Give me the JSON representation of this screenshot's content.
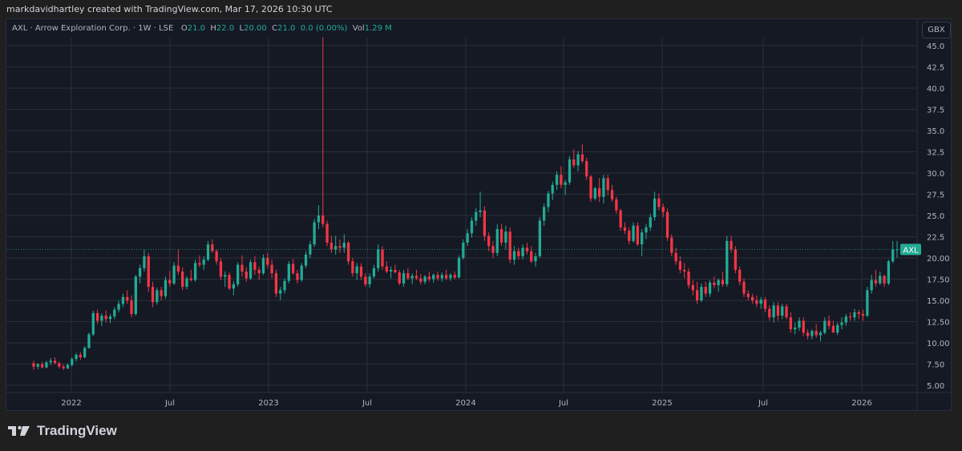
{
  "header": {
    "attribution": "markdavidhartley created with TradingView.com, Mar 17, 2026 10:30 UTC"
  },
  "legend": {
    "symbol": "AXL",
    "name": "Arrow Exploration Corp.",
    "interval": "1W",
    "exchange": "LSE",
    "open_label": "O",
    "open": "21.0",
    "high_label": "H",
    "high": "22.0",
    "low_label": "L",
    "low": "20.00",
    "close_label": "C",
    "close": "21.0",
    "change": "0.0 (0.00%)",
    "vol_label": "Vol",
    "volume": "1.29 M"
  },
  "price_scale": {
    "currency": "GBX",
    "ticks": [
      "45.0",
      "42.5",
      "40.0",
      "37.5",
      "35.0",
      "32.5",
      "30.0",
      "27.5",
      "25.0",
      "22.5",
      "20.00",
      "17.50",
      "15.00",
      "12.50",
      "10.00",
      "7.50",
      "5.00"
    ],
    "last_price_tag": "AXL"
  },
  "time_scale": {
    "ticks": [
      "2022",
      "Jul",
      "2023",
      "Jul",
      "2024",
      "Jul",
      "2025",
      "Jul",
      "2026"
    ]
  },
  "branding": {
    "logo_text": "TradingView"
  },
  "colors": {
    "up": "#22ab94",
    "down": "#f23645",
    "background": "#151924",
    "grid": "#2a2e39",
    "text": "#b2b5be",
    "outer": "#1f1f1f"
  },
  "chart_data": {
    "type": "candlestick",
    "title": "AXL · Arrow Exploration Corp. · 1W · LSE",
    "xlabel": "",
    "ylabel": "Price (GBX)",
    "ylim": [
      5.0,
      45.0
    ],
    "x_tick_labels": [
      "2022",
      "Jul",
      "2023",
      "Jul",
      "2024",
      "Jul",
      "2025",
      "Jul",
      "2026"
    ],
    "y_tick_labels": [
      "5.00",
      "7.50",
      "10.00",
      "12.50",
      "15.00",
      "17.50",
      "20.00",
      "22.5",
      "25.0",
      "27.5",
      "30.0",
      "32.5",
      "35.0",
      "37.5",
      "40.0",
      "42.5",
      "45.0"
    ],
    "grid": true,
    "last_price": 21.0,
    "start": "2021-10 (approx)",
    "end": "2026-03",
    "interval": "weekly",
    "ohlc": [
      [
        7.6,
        7.9,
        6.8,
        7.2
      ],
      [
        7.2,
        7.6,
        6.9,
        7.5
      ],
      [
        7.5,
        7.8,
        7.0,
        7.1
      ],
      [
        7.1,
        7.9,
        7.0,
        7.7
      ],
      [
        7.7,
        8.2,
        7.4,
        7.9
      ],
      [
        7.9,
        8.3,
        7.5,
        7.6
      ],
      [
        7.6,
        7.8,
        7.0,
        7.2
      ],
      [
        7.2,
        7.5,
        6.8,
        7.0
      ],
      [
        7.0,
        7.6,
        6.9,
        7.4
      ],
      [
        7.4,
        8.3,
        7.2,
        8.1
      ],
      [
        8.1,
        8.8,
        7.8,
        8.6
      ],
      [
        8.6,
        8.9,
        8.0,
        8.3
      ],
      [
        8.3,
        9.6,
        8.2,
        9.4
      ],
      [
        9.4,
        11.2,
        9.3,
        11.0
      ],
      [
        11.0,
        13.8,
        10.8,
        13.5
      ],
      [
        13.5,
        13.9,
        12.2,
        12.6
      ],
      [
        12.6,
        13.5,
        12.0,
        13.2
      ],
      [
        13.2,
        13.8,
        12.4,
        12.8
      ],
      [
        12.8,
        13.4,
        12.3,
        13.1
      ],
      [
        13.1,
        14.2,
        12.8,
        13.9
      ],
      [
        13.9,
        15.0,
        13.6,
        14.6
      ],
      [
        14.6,
        15.8,
        14.2,
        15.4
      ],
      [
        15.4,
        16.2,
        14.6,
        15.0
      ],
      [
        15.0,
        15.6,
        13.0,
        13.4
      ],
      [
        13.4,
        18.0,
        13.2,
        17.8
      ],
      [
        17.8,
        19.2,
        17.0,
        18.8
      ],
      [
        18.8,
        21.0,
        18.4,
        20.2
      ],
      [
        20.2,
        20.6,
        16.0,
        16.6
      ],
      [
        16.6,
        17.2,
        14.2,
        14.8
      ],
      [
        14.8,
        16.5,
        14.5,
        16.2
      ],
      [
        16.2,
        16.6,
        15.0,
        15.5
      ],
      [
        15.5,
        17.8,
        15.2,
        17.4
      ],
      [
        17.4,
        18.5,
        16.6,
        17.0
      ],
      [
        17.0,
        19.5,
        16.8,
        19.1
      ],
      [
        19.1,
        21.0,
        18.0,
        18.4
      ],
      [
        18.4,
        18.9,
        16.2,
        16.6
      ],
      [
        16.6,
        17.9,
        16.3,
        17.6
      ],
      [
        17.6,
        18.6,
        17.2,
        17.4
      ],
      [
        17.4,
        19.8,
        17.2,
        19.4
      ],
      [
        19.4,
        20.3,
        18.9,
        19.2
      ],
      [
        19.2,
        20.2,
        18.6,
        19.8
      ],
      [
        19.8,
        22.0,
        19.6,
        21.6
      ],
      [
        21.6,
        22.2,
        20.6,
        20.8
      ],
      [
        20.8,
        21.0,
        19.2,
        19.6
      ],
      [
        19.6,
        20.0,
        17.4,
        17.8
      ],
      [
        17.8,
        18.4,
        16.6,
        18.0
      ],
      [
        18.0,
        18.3,
        16.2,
        16.4
      ],
      [
        16.4,
        17.3,
        15.6,
        16.9
      ],
      [
        16.9,
        19.5,
        16.6,
        19.2
      ],
      [
        19.2,
        20.3,
        17.8,
        18.4
      ],
      [
        18.4,
        18.9,
        17.2,
        17.6
      ],
      [
        17.6,
        19.8,
        17.4,
        19.5
      ],
      [
        19.5,
        20.2,
        18.0,
        18.6
      ],
      [
        18.6,
        19.0,
        17.4,
        18.2
      ],
      [
        18.2,
        20.4,
        18.0,
        20.0
      ],
      [
        20.0,
        20.6,
        18.8,
        19.2
      ],
      [
        19.2,
        19.8,
        17.6,
        18.2
      ],
      [
        18.2,
        18.6,
        15.4,
        15.8
      ],
      [
        15.8,
        16.6,
        15.0,
        16.2
      ],
      [
        16.2,
        17.6,
        15.8,
        17.3
      ],
      [
        17.3,
        19.6,
        17.0,
        19.3
      ],
      [
        19.3,
        19.9,
        18.0,
        18.2
      ],
      [
        18.2,
        18.6,
        17.0,
        17.4
      ],
      [
        17.4,
        19.4,
        17.2,
        19.1
      ],
      [
        19.1,
        20.8,
        18.8,
        20.4
      ],
      [
        20.4,
        22.0,
        20.0,
        21.6
      ],
      [
        21.6,
        24.6,
        21.3,
        24.2
      ],
      [
        24.2,
        26.2,
        23.4,
        25.0
      ],
      [
        25.0,
        46.0,
        23.6,
        24.0
      ],
      [
        24.0,
        24.4,
        21.4,
        21.8
      ],
      [
        21.8,
        22.6,
        20.6,
        21.0
      ],
      [
        21.0,
        22.6,
        20.4,
        21.4
      ],
      [
        21.4,
        22.2,
        20.6,
        21.2
      ],
      [
        21.2,
        22.8,
        20.6,
        21.8
      ],
      [
        21.8,
        22.0,
        19.2,
        19.6
      ],
      [
        19.6,
        20.0,
        17.8,
        18.2
      ],
      [
        18.2,
        19.4,
        17.4,
        19.0
      ],
      [
        19.0,
        19.4,
        17.4,
        17.8
      ],
      [
        17.8,
        18.2,
        16.6,
        16.9
      ],
      [
        16.9,
        18.2,
        16.5,
        17.8
      ],
      [
        17.8,
        19.2,
        17.6,
        18.8
      ],
      [
        18.8,
        21.6,
        18.4,
        21.0
      ],
      [
        21.0,
        21.4,
        18.6,
        19.0
      ],
      [
        19.0,
        19.6,
        18.2,
        18.4
      ],
      [
        18.4,
        19.0,
        17.6,
        18.6
      ],
      [
        18.6,
        19.2,
        18.2,
        18.3
      ],
      [
        18.3,
        18.6,
        16.8,
        17.0
      ],
      [
        17.0,
        18.6,
        16.6,
        18.2
      ],
      [
        18.2,
        18.8,
        17.4,
        17.6
      ],
      [
        17.6,
        18.2,
        16.9,
        17.9
      ],
      [
        17.9,
        18.6,
        17.4,
        17.6
      ],
      [
        17.6,
        18.1,
        16.9,
        17.2
      ],
      [
        17.2,
        18.0,
        16.9,
        17.8
      ],
      [
        17.8,
        18.4,
        17.2,
        17.5
      ],
      [
        17.5,
        18.2,
        17.1,
        18.0
      ],
      [
        18.0,
        18.4,
        17.3,
        17.6
      ],
      [
        17.6,
        18.3,
        17.2,
        18.0
      ],
      [
        18.0,
        18.6,
        17.4,
        17.6
      ],
      [
        17.6,
        18.2,
        17.3,
        18.0
      ],
      [
        18.0,
        18.4,
        17.5,
        17.7
      ],
      [
        17.7,
        20.3,
        17.6,
        20.0
      ],
      [
        20.0,
        22.2,
        19.8,
        21.8
      ],
      [
        21.8,
        23.4,
        21.4,
        22.9
      ],
      [
        22.9,
        24.8,
        22.4,
        24.4
      ],
      [
        24.4,
        25.9,
        23.8,
        25.4
      ],
      [
        25.4,
        27.8,
        24.8,
        25.6
      ],
      [
        25.6,
        26.1,
        22.0,
        22.6
      ],
      [
        22.6,
        23.0,
        20.8,
        21.4
      ],
      [
        21.4,
        22.0,
        20.0,
        20.6
      ],
      [
        20.6,
        24.0,
        20.2,
        23.4
      ],
      [
        23.4,
        24.0,
        21.4,
        21.8
      ],
      [
        21.8,
        23.8,
        21.0,
        23.1
      ],
      [
        23.1,
        23.6,
        19.4,
        19.8
      ],
      [
        19.8,
        21.4,
        19.2,
        20.8
      ],
      [
        20.8,
        21.2,
        19.8,
        20.2
      ],
      [
        20.2,
        21.6,
        19.8,
        21.2
      ],
      [
        21.2,
        21.8,
        20.4,
        20.8
      ],
      [
        20.8,
        21.4,
        19.4,
        19.6
      ],
      [
        19.6,
        20.6,
        19.0,
        20.2
      ],
      [
        20.2,
        24.8,
        20.0,
        24.4
      ],
      [
        24.4,
        26.4,
        23.8,
        26.0
      ],
      [
        26.0,
        27.9,
        25.4,
        27.6
      ],
      [
        27.6,
        29.0,
        26.8,
        28.6
      ],
      [
        28.6,
        30.2,
        28.0,
        29.8
      ],
      [
        29.8,
        30.8,
        28.2,
        28.6
      ],
      [
        28.6,
        29.2,
        27.4,
        28.9
      ],
      [
        28.9,
        32.0,
        28.6,
        31.6
      ],
      [
        31.6,
        32.8,
        30.6,
        30.9
      ],
      [
        30.9,
        32.6,
        30.2,
        32.2
      ],
      [
        32.2,
        33.4,
        31.2,
        31.4
      ],
      [
        31.4,
        31.8,
        29.2,
        29.6
      ],
      [
        29.6,
        29.8,
        26.6,
        27.0
      ],
      [
        27.0,
        28.4,
        26.8,
        28.2
      ],
      [
        28.2,
        29.4,
        26.6,
        27.2
      ],
      [
        27.2,
        29.8,
        26.4,
        29.4
      ],
      [
        29.4,
        29.8,
        27.4,
        28.0
      ],
      [
        28.0,
        28.6,
        26.6,
        26.9
      ],
      [
        26.9,
        27.2,
        25.2,
        25.6
      ],
      [
        25.6,
        25.8,
        23.2,
        23.6
      ],
      [
        23.6,
        24.2,
        22.8,
        23.2
      ],
      [
        23.2,
        23.6,
        21.6,
        22.0
      ],
      [
        22.0,
        24.2,
        21.8,
        23.8
      ],
      [
        23.8,
        24.2,
        21.4,
        21.6
      ],
      [
        21.6,
        23.4,
        20.2,
        23.0
      ],
      [
        23.0,
        24.0,
        22.2,
        23.6
      ],
      [
        23.6,
        25.2,
        23.2,
        24.8
      ],
      [
        24.8,
        27.8,
        24.4,
        27.0
      ],
      [
        27.0,
        27.6,
        25.6,
        26.0
      ],
      [
        26.0,
        26.4,
        24.8,
        25.4
      ],
      [
        25.4,
        25.8,
        22.0,
        22.4
      ],
      [
        22.4,
        22.8,
        20.2,
        20.6
      ],
      [
        20.6,
        21.2,
        19.2,
        19.6
      ],
      [
        19.6,
        20.2,
        18.2,
        18.6
      ],
      [
        18.6,
        19.4,
        17.6,
        18.4
      ],
      [
        18.4,
        18.8,
        16.4,
        16.8
      ],
      [
        16.8,
        17.4,
        15.6,
        16.2
      ],
      [
        16.2,
        17.2,
        14.6,
        15.0
      ],
      [
        15.0,
        17.0,
        14.8,
        16.6
      ],
      [
        16.6,
        17.2,
        15.4,
        15.8
      ],
      [
        15.8,
        17.4,
        15.4,
        17.1
      ],
      [
        17.1,
        17.8,
        16.4,
        16.8
      ],
      [
        16.8,
        17.6,
        16.0,
        17.4
      ],
      [
        17.4,
        18.4,
        16.6,
        16.9
      ],
      [
        16.9,
        22.6,
        16.6,
        22.0
      ],
      [
        22.0,
        22.6,
        20.6,
        21.0
      ],
      [
        21.0,
        21.4,
        18.2,
        18.6
      ],
      [
        18.6,
        19.0,
        16.8,
        17.2
      ],
      [
        17.2,
        17.6,
        15.4,
        15.8
      ],
      [
        15.8,
        16.2,
        15.0,
        15.4
      ],
      [
        15.4,
        15.8,
        14.6,
        15.0
      ],
      [
        15.0,
        15.6,
        14.2,
        14.6
      ],
      [
        14.6,
        15.4,
        14.0,
        15.1
      ],
      [
        15.1,
        15.4,
        13.6,
        14.0
      ],
      [
        14.0,
        14.4,
        12.6,
        13.0
      ],
      [
        13.0,
        14.8,
        12.4,
        14.4
      ],
      [
        14.4,
        14.8,
        12.6,
        13.2
      ],
      [
        13.2,
        14.6,
        12.8,
        14.3
      ],
      [
        14.3,
        14.6,
        12.8,
        13.0
      ],
      [
        13.0,
        13.6,
        11.2,
        11.6
      ],
      [
        11.6,
        12.4,
        11.0,
        11.8
      ],
      [
        11.8,
        13.0,
        11.4,
        12.6
      ],
      [
        12.6,
        13.0,
        10.8,
        11.2
      ],
      [
        11.2,
        11.6,
        10.4,
        10.8
      ],
      [
        10.8,
        11.6,
        10.4,
        11.4
      ],
      [
        11.4,
        12.2,
        10.6,
        10.9
      ],
      [
        10.9,
        11.4,
        10.2,
        11.2
      ],
      [
        11.2,
        13.0,
        11.0,
        12.6
      ],
      [
        12.6,
        13.2,
        11.6,
        12.0
      ],
      [
        12.0,
        12.6,
        11.4,
        11.2
      ],
      [
        11.2,
        12.4,
        10.9,
        12.1
      ],
      [
        12.1,
        13.0,
        11.6,
        12.4
      ],
      [
        12.4,
        13.4,
        12.0,
        13.1
      ],
      [
        13.1,
        13.6,
        12.6,
        13.0
      ],
      [
        13.0,
        14.0,
        12.6,
        13.6
      ],
      [
        13.6,
        13.9,
        12.8,
        13.4
      ],
      [
        13.4,
        13.9,
        12.6,
        13.2
      ],
      [
        13.2,
        16.6,
        13.0,
        16.2
      ],
      [
        16.2,
        18.0,
        15.8,
        17.4
      ],
      [
        17.4,
        18.6,
        16.6,
        17.0
      ],
      [
        17.0,
        18.4,
        16.8,
        17.9
      ],
      [
        17.9,
        18.0,
        16.6,
        17.0
      ],
      [
        17.0,
        19.8,
        16.8,
        19.6
      ],
      [
        19.6,
        22.0,
        19.4,
        21.0
      ],
      [
        21.0,
        22.0,
        20.0,
        21.0
      ]
    ]
  }
}
